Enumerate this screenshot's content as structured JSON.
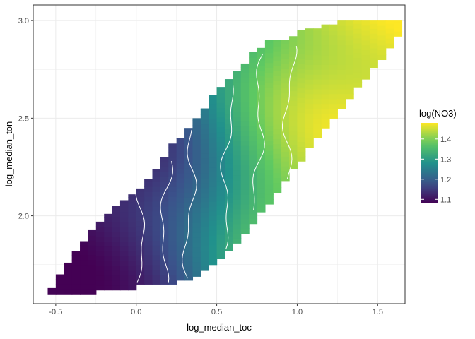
{
  "chart_data": {
    "type": "heatmap",
    "title": "",
    "xlabel": "log_median_toc",
    "ylabel": "log_median_ton",
    "xlim": [
      -0.64,
      1.67
    ],
    "ylim": [
      1.55,
      3.08
    ],
    "x_ticks": [
      -0.5,
      0.0,
      0.5,
      1.0,
      1.5
    ],
    "x_tick_labels": [
      "-0.5",
      "0.0",
      "0.5",
      "1.0",
      "1.5"
    ],
    "y_ticks": [
      2.0,
      2.5,
      3.0
    ],
    "y_tick_labels": [
      "2.0",
      "2.5",
      "3.0"
    ],
    "grid": true,
    "grid_color": "#ebebeb",
    "panel_border_color": "#333333",
    "fill_range": [
      1.08,
      1.48
    ],
    "colorscale": "viridis",
    "legend": {
      "title": "log(NO3)",
      "position": "right",
      "ticks": [
        1.1,
        1.2,
        1.3,
        1.4
      ],
      "tick_labels": [
        "1.1",
        "1.2",
        "1.3",
        "1.4"
      ]
    },
    "contour_color": "#ffffff",
    "contour_lines_x": [
      0.04,
      0.19,
      0.34,
      0.56,
      0.75,
      0.93
    ],
    "grid_x_step": 0.05,
    "grid_y_step": 0.025,
    "region_columns": [
      [
        -0.55,
        1.6,
        1.63
      ],
      [
        -0.5,
        1.6,
        1.7
      ],
      [
        -0.45,
        1.6,
        1.76
      ],
      [
        -0.4,
        1.6,
        1.82
      ],
      [
        -0.35,
        1.6,
        1.87
      ],
      [
        -0.3,
        1.6,
        1.93
      ],
      [
        -0.25,
        1.62,
        1.97
      ],
      [
        -0.2,
        1.62,
        2.01
      ],
      [
        -0.15,
        1.62,
        2.05
      ],
      [
        -0.1,
        1.62,
        2.08
      ],
      [
        -0.05,
        1.62,
        2.11
      ],
      [
        0.0,
        1.65,
        2.14
      ],
      [
        0.05,
        1.65,
        2.19
      ],
      [
        0.1,
        1.65,
        2.24
      ],
      [
        0.15,
        1.65,
        2.3
      ],
      [
        0.2,
        1.65,
        2.37
      ],
      [
        0.25,
        1.67,
        2.4
      ],
      [
        0.3,
        1.67,
        2.45
      ],
      [
        0.35,
        1.69,
        2.5
      ],
      [
        0.4,
        1.72,
        2.55
      ],
      [
        0.45,
        1.75,
        2.62
      ],
      [
        0.5,
        1.78,
        2.66
      ],
      [
        0.55,
        1.82,
        2.7
      ],
      [
        0.6,
        1.86,
        2.74
      ],
      [
        0.65,
        1.91,
        2.78
      ],
      [
        0.7,
        1.96,
        2.84
      ],
      [
        0.75,
        2.02,
        2.86
      ],
      [
        0.8,
        2.06,
        2.9
      ],
      [
        0.85,
        2.12,
        2.9
      ],
      [
        0.9,
        2.18,
        2.9
      ],
      [
        0.95,
        2.24,
        2.92
      ],
      [
        1.0,
        2.28,
        2.95
      ],
      [
        1.05,
        2.35,
        2.96
      ],
      [
        1.1,
        2.4,
        2.96
      ],
      [
        1.15,
        2.45,
        2.98
      ],
      [
        1.2,
        2.5,
        2.98
      ],
      [
        1.25,
        2.55,
        3.0
      ],
      [
        1.3,
        2.6,
        3.0
      ],
      [
        1.35,
        2.66,
        3.0
      ],
      [
        1.4,
        2.7,
        3.0
      ],
      [
        1.45,
        2.76,
        3.0
      ],
      [
        1.5,
        2.8,
        3.0
      ],
      [
        1.55,
        2.86,
        3.0
      ],
      [
        1.6,
        2.92,
        3.0
      ]
    ]
  }
}
